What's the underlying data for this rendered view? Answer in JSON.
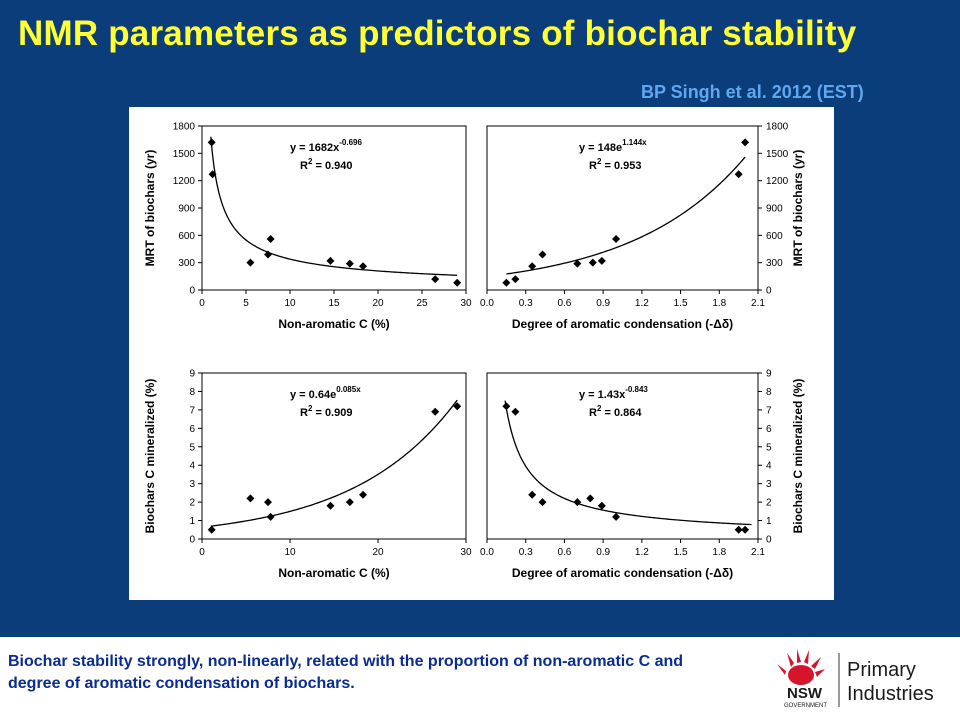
{
  "slide_title": "NMR parameters as predictors of biochar stability",
  "citation": "BP Singh et al. 2012 (EST)",
  "caption": "Biochar stability strongly, non-linearly, related with the proportion of non-aromatic C and degree of aromatic condensation of biochars.",
  "logo": {
    "org": "NSW",
    "sub": "GOVERNMENT",
    "name_line1": "Primary",
    "name_line2": "Industries"
  },
  "colors": {
    "background": "#0a3d7a",
    "title": "#ffff33",
    "citation": "#5fa8ef",
    "caption": "#0a2c8f",
    "logo_red": "#d7152a"
  },
  "chart_data": [
    {
      "type": "scatter",
      "xlabel": "Non-aromatic C (%)",
      "ylabel": "MRT of biochars (yr)",
      "xlim": [
        0,
        30
      ],
      "ylim": [
        0,
        1800
      ],
      "xticks": [
        0,
        5,
        10,
        15,
        20,
        25,
        30
      ],
      "yticks": [
        0,
        300,
        600,
        900,
        1200,
        1500,
        1800
      ],
      "y_axis_side": "left",
      "points": [
        [
          1.1,
          1620
        ],
        [
          1.2,
          1270
        ],
        [
          5.5,
          300
        ],
        [
          7.5,
          390
        ],
        [
          7.8,
          560
        ],
        [
          14.6,
          320
        ],
        [
          16.8,
          290
        ],
        [
          18.3,
          260
        ],
        [
          26.5,
          120
        ],
        [
          29.0,
          80
        ]
      ],
      "fit": {
        "model": "power",
        "a": 1682,
        "b": -0.696,
        "x_range": [
          1.0,
          29.0
        ]
      },
      "equation": {
        "base": "y = 1682x",
        "exp": "-0.696",
        "r2_label": "R",
        "r2_value": " = 0.940"
      }
    },
    {
      "type": "scatter",
      "xlabel": "Degree of aromatic condensation (-Δδ)",
      "ylabel": "MRT of biochars (yr)",
      "xlim": [
        0.0,
        2.1
      ],
      "ylim": [
        0,
        1800
      ],
      "xticks": [
        0.0,
        0.3,
        0.6,
        0.9,
        1.2,
        1.5,
        1.8,
        2.1
      ],
      "yticks": [
        0,
        300,
        600,
        900,
        1200,
        1500,
        1800
      ],
      "y_axis_side": "right",
      "points": [
        [
          0.15,
          80
        ],
        [
          0.22,
          120
        ],
        [
          0.35,
          260
        ],
        [
          0.43,
          390
        ],
        [
          0.7,
          290
        ],
        [
          0.82,
          300
        ],
        [
          0.89,
          320
        ],
        [
          1.0,
          560
        ],
        [
          1.95,
          1270
        ],
        [
          2.0,
          1620
        ]
      ],
      "fit": {
        "model": "exponential",
        "a": 148,
        "b": 1.144,
        "x_range": [
          0.15,
          2.0
        ]
      },
      "equation": {
        "base": "y = 148e",
        "exp": "1.144x",
        "r2_label": "R",
        "r2_value": " = 0.953"
      }
    },
    {
      "type": "scatter",
      "xlabel": "Non-aromatic C (%)",
      "ylabel": "Biochars C mineralized (%)",
      "xlim": [
        0,
        30
      ],
      "ylim": [
        0,
        9
      ],
      "xticks": [
        0,
        10,
        20,
        30
      ],
      "yticks": [
        0,
        1,
        2,
        3,
        4,
        5,
        6,
        7,
        8,
        9
      ],
      "y_axis_side": "left",
      "points": [
        [
          1.1,
          0.5
        ],
        [
          5.5,
          2.2
        ],
        [
          7.5,
          2.0
        ],
        [
          7.8,
          1.2
        ],
        [
          14.6,
          1.8
        ],
        [
          16.8,
          2.0
        ],
        [
          18.3,
          2.4
        ],
        [
          26.5,
          6.9
        ],
        [
          29.0,
          7.2
        ]
      ],
      "fit": {
        "model": "exponential",
        "a": 0.64,
        "b": 0.085,
        "x_range": [
          1.0,
          29.0
        ]
      },
      "equation": {
        "base": "y = 0.64e",
        "exp": "0.085x",
        "r2_label": "R",
        "r2_value": " = 0.909"
      }
    },
    {
      "type": "scatter",
      "xlabel": "Degree of aromatic condensation (-Δδ)",
      "ylabel": "Biochars C mineralized (%)",
      "xlim": [
        0.0,
        2.1
      ],
      "ylim": [
        0,
        9
      ],
      "xticks": [
        0.0,
        0.3,
        0.6,
        0.9,
        1.2,
        1.5,
        1.8,
        2.1
      ],
      "yticks": [
        0,
        1,
        2,
        3,
        4,
        5,
        6,
        7,
        8,
        9
      ],
      "y_axis_side": "right",
      "points": [
        [
          0.15,
          7.2
        ],
        [
          0.22,
          6.9
        ],
        [
          0.35,
          2.4
        ],
        [
          0.43,
          2.0
        ],
        [
          0.7,
          2.0
        ],
        [
          0.8,
          2.2
        ],
        [
          0.89,
          1.8
        ],
        [
          1.0,
          1.2
        ],
        [
          1.95,
          0.5
        ],
        [
          2.0,
          0.5
        ]
      ],
      "fit": {
        "model": "power",
        "a": 1.43,
        "b": -0.843,
        "x_range": [
          0.14,
          2.05
        ]
      },
      "equation": {
        "base": "y = 1.43x",
        "exp": "-0.843",
        "r2_label": "R",
        "r2_value": " = 0.864"
      }
    }
  ]
}
